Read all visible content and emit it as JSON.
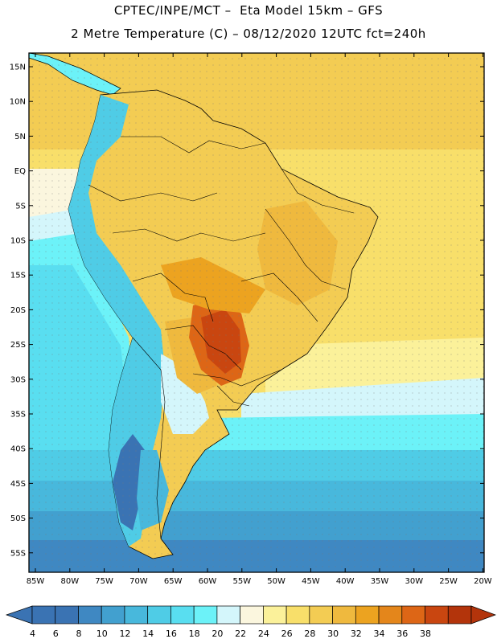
{
  "header": {
    "line1": "CPTEC/INPE/MCT –  Eta Model 15km – GFS",
    "line2": "2 Metre Temperature (C) – 08/12/2020 12UTC fct=240h"
  },
  "axes": {
    "lat_labels": [
      "15N",
      "10N",
      "5N",
      "EQ",
      "5S",
      "10S",
      "15S",
      "20S",
      "25S",
      "30S",
      "35S",
      "40S",
      "45S",
      "50S",
      "55S"
    ],
    "lon_labels": [
      "85W",
      "80W",
      "75W",
      "70W",
      "65W",
      "60W",
      "55W",
      "50W",
      "45W",
      "40W",
      "35W",
      "30W",
      "25W",
      "20W"
    ]
  },
  "colorbar": {
    "labels": [
      "4",
      "6",
      "8",
      "10",
      "12",
      "14",
      "16",
      "18",
      "20",
      "22",
      "24",
      "26",
      "28",
      "30",
      "32",
      "34",
      "36",
      "38"
    ],
    "colors": [
      "#3a73b3",
      "#3f88c2",
      "#42a0cf",
      "#48b8dc",
      "#4fcce6",
      "#59def0",
      "#6cf2f8",
      "#d4f6fb",
      "#fbf6de",
      "#fbf19a",
      "#f8df6a",
      "#f3cc53",
      "#efb93e",
      "#eca320",
      "#e4861b",
      "#dd6616",
      "#c94610",
      "#b3340b"
    ]
  }
}
